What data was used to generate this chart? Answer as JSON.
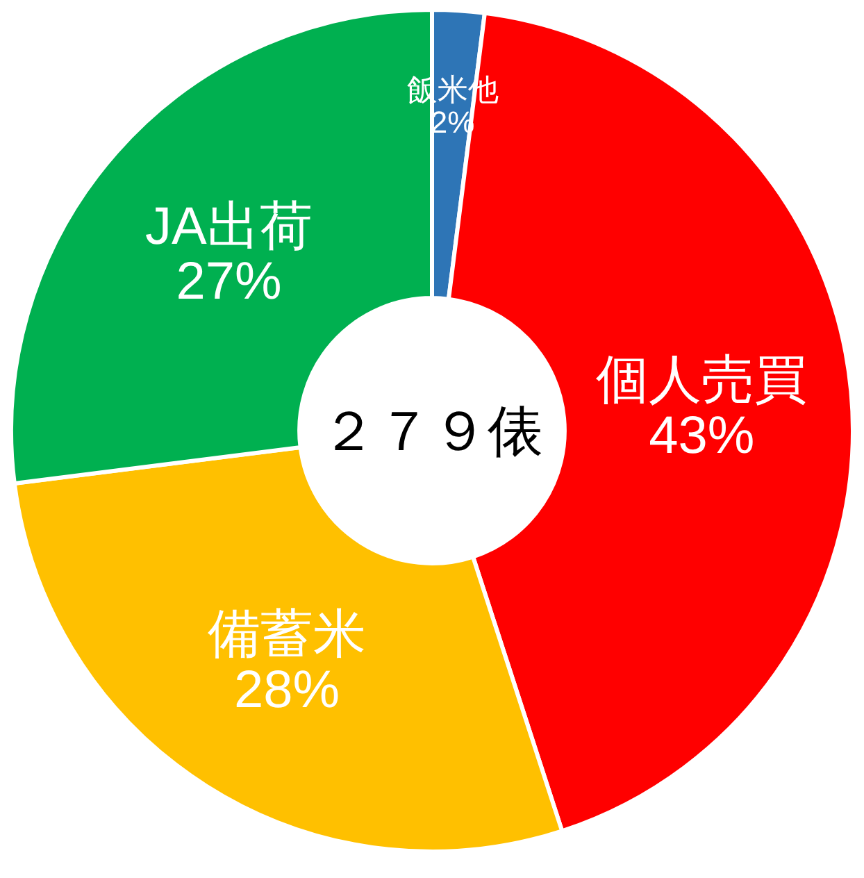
{
  "chart_data": {
    "type": "donut",
    "categories": [
      "飯米他",
      "個人売買",
      "備蓄米",
      "JA出荷"
    ],
    "values": [
      2,
      43,
      28,
      27
    ],
    "value_labels": [
      "2%",
      "43%",
      "28%",
      "27%"
    ],
    "colors": [
      "#2e75b6",
      "#ff0000",
      "#ffc000",
      "#00b050"
    ],
    "annotations": [
      "２７９俵"
    ]
  }
}
